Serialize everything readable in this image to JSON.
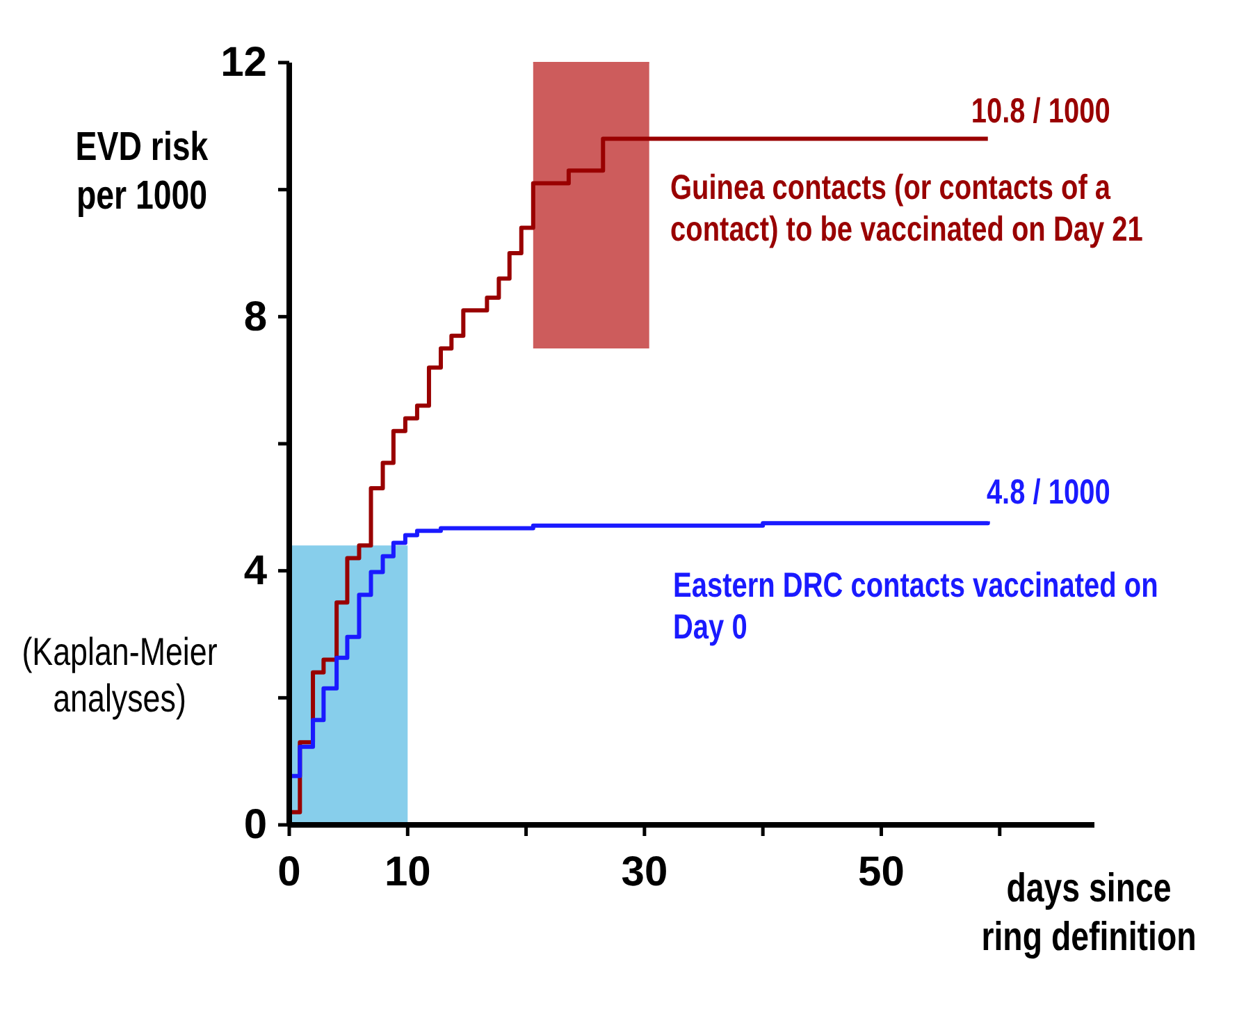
{
  "chart_data": {
    "type": "step",
    "ylabel": "EVD risk per 1000",
    "xlabel": "days since ring definition",
    "annotations": [
      {
        "text": "10.8 / 1000",
        "x": 59,
        "y": 10.8
      },
      {
        "text": "4.8 / 1000",
        "x": 59,
        "y": 4.8
      },
      "(Kaplan-Meier analyses)"
    ],
    "xlim": [
      0,
      68
    ],
    "ylim": [
      0,
      12
    ],
    "xticks": [
      0,
      10,
      {
        "value": 20,
        "label": null
      },
      30,
      {
        "value": 40,
        "label": null
      },
      50,
      {
        "value": 60,
        "label": null
      }
    ],
    "yticks": [
      0,
      {
        "value": 2,
        "label": null
      },
      4,
      {
        "value": 6,
        "label": null
      },
      8,
      {
        "value": 10,
        "label": null
      },
      12
    ],
    "series": [
      {
        "type": "line",
        "color": "#cd5c5c",
        "x": [
          20.6,
          30.4
        ],
        "values": [
          12,
          12
        ],
        "lower": [
          7.5,
          7.5
        ],
        "upper": [
          12,
          12
        ]
      },
      {
        "type": "area",
        "color": "#87ceeb",
        "x": [
          0,
          10
        ],
        "values": [
          4.4,
          4.4
        ]
      },
      {
        "name": "Guinea contacts (or contacts of a contact) to be vaccinated on Day 21",
        "color": "#990000",
        "x": [
          0,
          0,
          0.9,
          2,
          2.9,
          4,
          4.9,
          5.9,
          6.9,
          7.9,
          8.8,
          9.8,
          10.8,
          11.8,
          12.8,
          13.7,
          14.7,
          16.7,
          17.7,
          18.6,
          19.6,
          20.6,
          23.6,
          26.5,
          59
        ],
        "values": [
          0,
          0.2,
          1.3,
          2.4,
          2.6,
          3.5,
          4.2,
          4.4,
          5.3,
          5.7,
          6.2,
          6.4,
          6.6,
          7.2,
          7.5,
          7.7,
          8.1,
          8.3,
          8.6,
          9.0,
          9.4,
          10.1,
          10.3,
          10.8,
          10.8
        ]
      },
      {
        "name": "Eastern DRC contacts vaccinated on Day 0",
        "color": "#1a1aff",
        "x": [
          0,
          0,
          0.9,
          2,
          2.9,
          4,
          4.9,
          5.9,
          6.9,
          7.9,
          8.8,
          9.8,
          10.8,
          12.8,
          20.6,
          40,
          59
        ],
        "values": [
          0,
          0.77,
          1.23,
          1.65,
          2.15,
          2.63,
          2.96,
          3.62,
          3.98,
          4.23,
          4.44,
          4.56,
          4.63,
          4.67,
          4.71,
          4.75,
          4.78
        ]
      }
    ],
    "legend": false,
    "grid": false
  }
}
